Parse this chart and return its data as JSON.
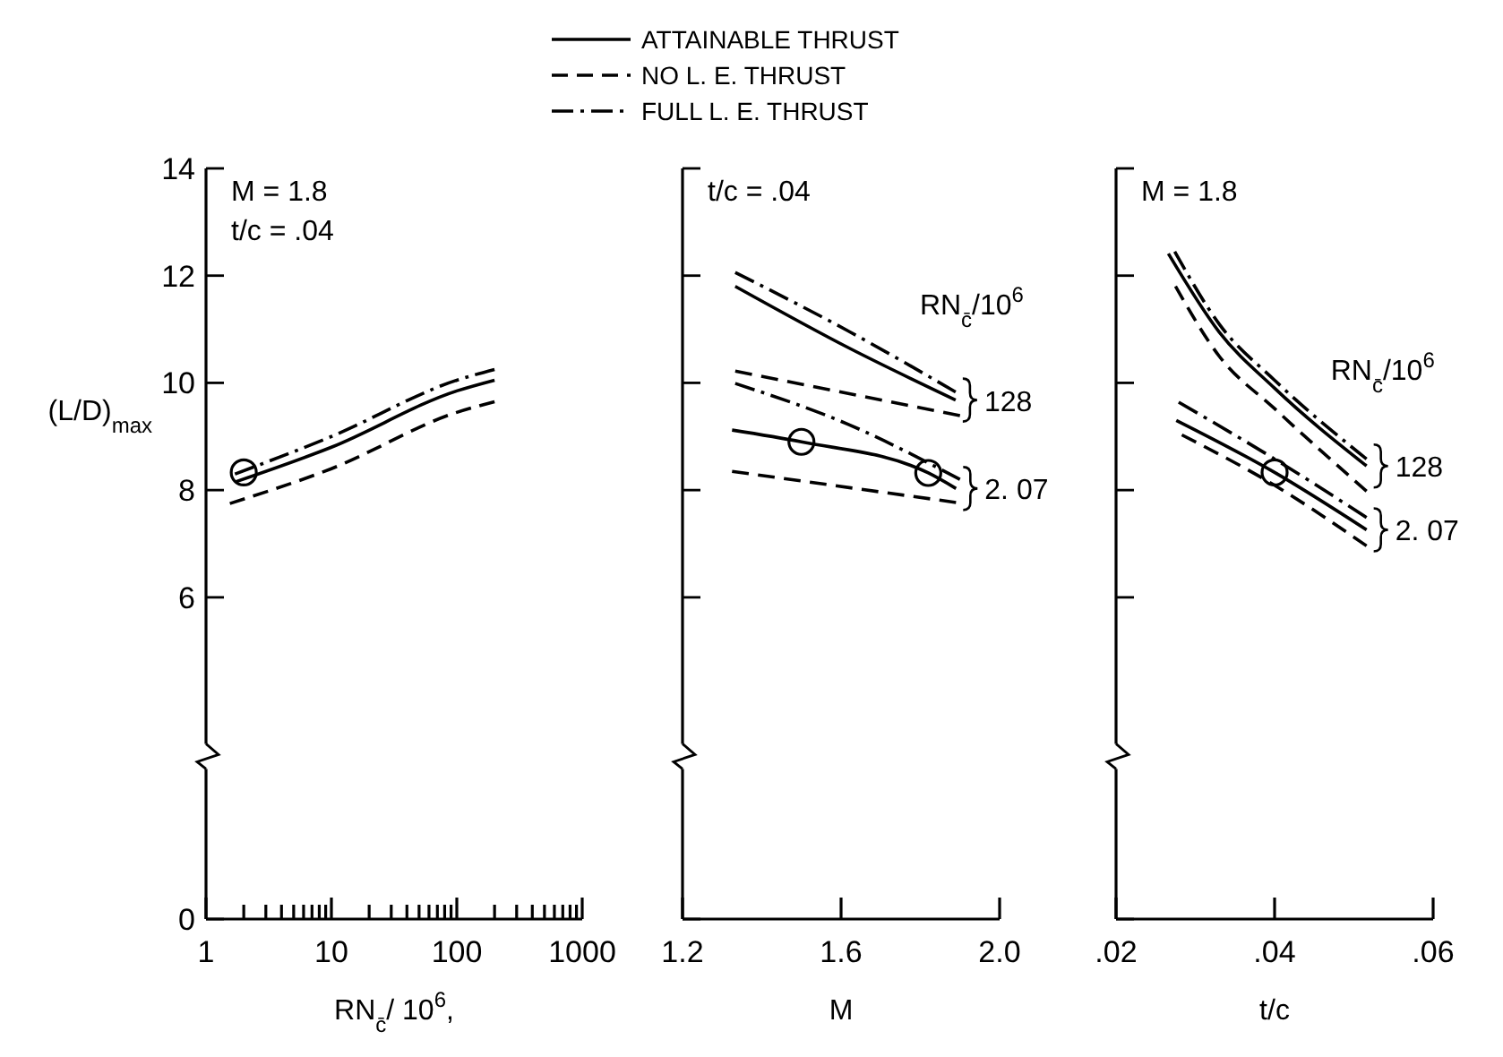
{
  "chart_data": [
    {
      "type": "line",
      "log": "x",
      "xlabel": "RN$_{c̄}$/ 10$^{6}$,",
      "ylabel": "(L/D)$_{max}$",
      "xlim": [
        1,
        1000
      ],
      "xticks": [
        1,
        {
          "value": 2,
          "label": null
        },
        {
          "value": 3,
          "label": null
        },
        {
          "value": 4,
          "label": null
        },
        {
          "value": 5,
          "label": null
        },
        {
          "value": 6,
          "label": null
        },
        {
          "value": 7,
          "label": null
        },
        {
          "value": 8,
          "label": null
        },
        {
          "value": 9,
          "label": null
        },
        10,
        {
          "value": 20,
          "label": null
        },
        {
          "value": 30,
          "label": null
        },
        {
          "value": 40,
          "label": null
        },
        {
          "value": 50,
          "label": null
        },
        {
          "value": 60,
          "label": null
        },
        {
          "value": 70,
          "label": null
        },
        {
          "value": 80,
          "label": null
        },
        {
          "value": 90,
          "label": null
        },
        100,
        {
          "value": 200,
          "label": null
        },
        {
          "value": 300,
          "label": null
        },
        {
          "value": 400,
          "label": null
        },
        {
          "value": 500,
          "label": null
        },
        {
          "value": 600,
          "label": null
        },
        {
          "value": 700,
          "label": null
        },
        {
          "value": 800,
          "label": null
        },
        {
          "value": 900,
          "label": null
        },
        1000
      ],
      "ylim": [
        0,
        14
      ],
      "yticks": [
        0,
        6,
        8,
        10,
        12,
        14
      ],
      "legend": "top",
      "annotations": [
        "M = 1.8",
        "t/c = .04"
      ],
      "series": [
        {
          "name": "ATTAINABLE THRUST",
          "color": "#000000",
          "line_style": "solid",
          "x": [
            1.7,
            10,
            100,
            200
          ],
          "values": [
            8.15,
            8.8,
            9.85,
            10.05
          ]
        },
        {
          "name": "NO L. E. THRUST",
          "color": "#000000",
          "line_style": "dashed",
          "x": [
            1.55,
            10,
            100,
            200
          ],
          "values": [
            7.75,
            8.4,
            9.45,
            9.65
          ]
        },
        {
          "name": "FULL L. E. THRUST",
          "color": "#000000",
          "line_style": "dashdot",
          "x": [
            1.7,
            10,
            100,
            200
          ],
          "values": [
            8.3,
            9.0,
            10.05,
            10.25
          ]
        },
        {
          "type": "scatter",
          "marker": "circle",
          "color": "#000000",
          "x": [
            2
          ],
          "values": [
            8.33
          ]
        }
      ]
    },
    {
      "type": "line",
      "xlabel": "M",
      "xlim": [
        1.2,
        2.0
      ],
      "xticks": [
        1.2,
        1.6,
        {
          "value": 2,
          "label": "2.0"
        }
      ],
      "ylim": [
        0,
        14
      ],
      "yticks": [
        0,
        6,
        8,
        10,
        12,
        14
      ],
      "tick_labels": "x",
      "legend_title": "RN$_{c̄}$/10$^{6}$",
      "annotations": [
        "t/c = .04",
        {
          "text": "128",
          "x": 1.889,
          "y": 9.68
        },
        {
          "text": "2. 07",
          "x": 1.89,
          "y": 8.03
        }
      ],
      "series": [
        {
          "color": "#000000",
          "line_style": "dashdot",
          "x": [
            1.333,
            1.62,
            1.889
          ],
          "values": [
            12.06,
            10.96,
            9.83
          ]
        },
        {
          "color": "#000000",
          "line_style": "solid",
          "x": [
            1.333,
            1.62,
            1.889
          ],
          "values": [
            11.8,
            10.65,
            9.68
          ]
        },
        {
          "color": "#000000",
          "line_style": "dashed",
          "x": [
            1.333,
            1.9
          ],
          "values": [
            10.22,
            9.39
          ]
        },
        {
          "color": "#000000",
          "line_style": "dashdot",
          "x": [
            1.333,
            1.62,
            1.9
          ],
          "values": [
            9.99,
            9.22,
            8.2
          ]
        },
        {
          "color": "#000000",
          "line_style": "solid",
          "x": [
            1.325,
            1.5,
            1.82,
            1.89
          ],
          "values": [
            9.12,
            8.9,
            8.32,
            8.03
          ]
        },
        {
          "color": "#000000",
          "line_style": "dashed",
          "x": [
            1.325,
            1.89
          ],
          "values": [
            8.35,
            7.77
          ]
        },
        {
          "type": "scatter",
          "marker": "circle",
          "color": "#000000",
          "x": [
            1.5,
            1.82
          ],
          "values": [
            8.9,
            8.32
          ]
        }
      ]
    },
    {
      "type": "line",
      "xlabel": "t/c",
      "xlim": [
        0.02,
        0.06
      ],
      "xticks": [
        {
          "value": 0.02,
          "label": ".02"
        },
        {
          "value": 0.04,
          "label": ".04"
        },
        {
          "value": 0.06,
          "label": ".06"
        }
      ],
      "ylim": [
        0,
        14
      ],
      "yticks": [
        0,
        6,
        8,
        10,
        12,
        14
      ],
      "tick_labels": "x",
      "legend_title": "RN$_{c̄}$/10$^{6}$",
      "annotations": [
        "M = 1.8",
        {
          "text": "128",
          "x": 0.0516,
          "y": 8.45
        },
        {
          "text": "2. 07",
          "x": 0.0516,
          "y": 7.26
        }
      ],
      "series": [
        {
          "color": "#000000",
          "line_style": "dashdot",
          "x": [
            0.0274,
            0.033,
            0.04,
            0.0516
          ],
          "values": [
            12.45,
            11.1,
            10.05,
            8.58
          ]
        },
        {
          "color": "#000000",
          "line_style": "solid",
          "x": [
            0.0266,
            0.033,
            0.04,
            0.0516
          ],
          "values": [
            12.41,
            10.95,
            9.9,
            8.45
          ]
        },
        {
          "color": "#000000",
          "line_style": "dashed",
          "x": [
            0.0275,
            0.033,
            0.04,
            0.0516
          ],
          "values": [
            11.8,
            10.5,
            9.52,
            7.98
          ]
        },
        {
          "color": "#000000",
          "line_style": "dashdot",
          "x": [
            0.0279,
            0.04,
            0.0516
          ],
          "values": [
            9.64,
            8.58,
            7.49
          ]
        },
        {
          "color": "#000000",
          "line_style": "solid",
          "x": [
            0.0276,
            0.04,
            0.0516
          ],
          "values": [
            9.3,
            8.33,
            7.26
          ]
        },
        {
          "color": "#000000",
          "line_style": "dashed",
          "x": [
            0.0283,
            0.04,
            0.0516
          ],
          "values": [
            9.03,
            8.09,
            6.96
          ]
        },
        {
          "type": "scatter",
          "marker": "circle",
          "color": "#000000",
          "x": [
            0.04
          ],
          "values": [
            8.33
          ]
        }
      ]
    }
  ]
}
